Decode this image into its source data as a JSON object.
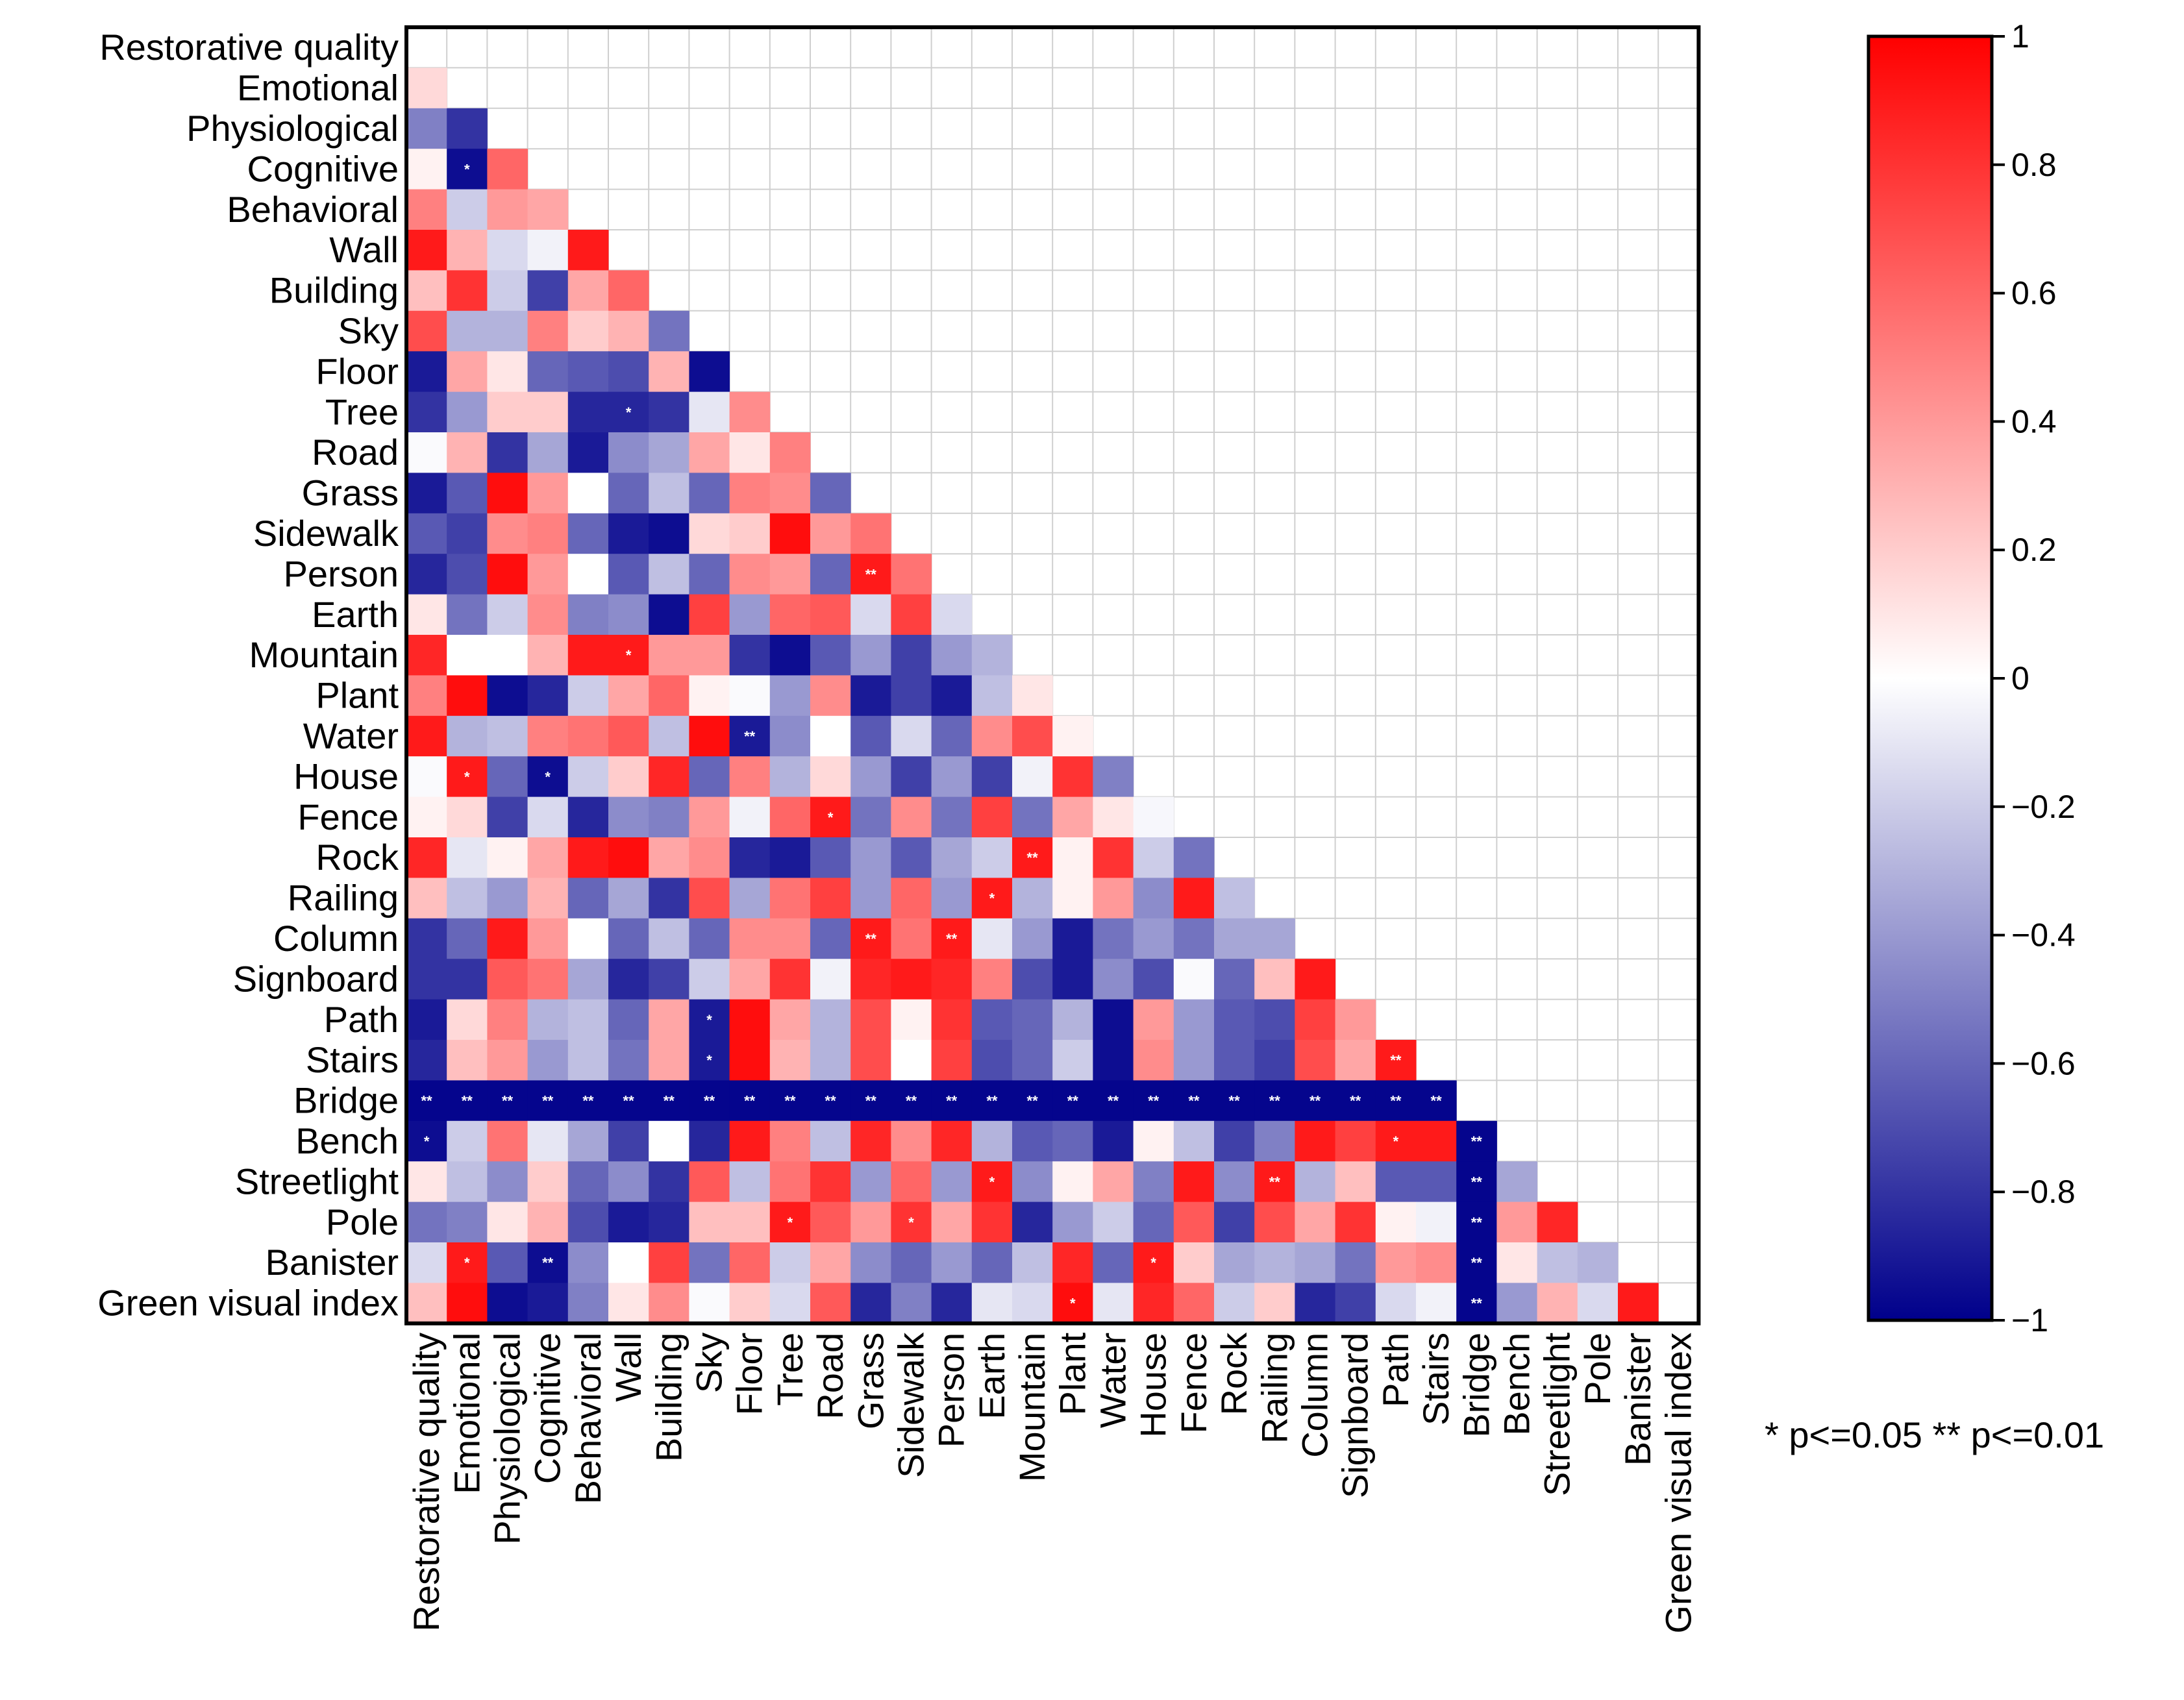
{
  "chart_data": {
    "type": "heatmap",
    "title": "",
    "variables": [
      "Restorative quality",
      "Emotional",
      "Physiological",
      "Cognitive",
      "Behavioral",
      "Wall",
      "Building",
      "Sky",
      "Floor",
      "Tree",
      "Road",
      "Grass",
      "Sidewalk",
      "Person",
      "Earth",
      "Mountain",
      "Plant",
      "Water",
      "House",
      "Fence",
      "Rock",
      "Railing",
      "Column",
      "Signboard",
      "Path",
      "Stairs",
      "Bridge",
      "Bench",
      "Streetlight",
      "Pole",
      "Banister",
      "Green visual index"
    ],
    "matrix": [
      [],
      [
        0.15
      ],
      [
        -0.5,
        -0.8
      ],
      [
        0.05,
        -0.95,
        0.6
      ],
      [
        0.5,
        -0.2,
        0.4,
        0.35
      ],
      [
        0.9,
        0.3,
        -0.15,
        -0.05,
        0.9
      ],
      [
        0.25,
        0.8,
        -0.2,
        -0.75,
        0.35,
        0.6
      ],
      [
        0.7,
        -0.3,
        -0.3,
        0.5,
        0.2,
        0.3,
        -0.55
      ],
      [
        -0.9,
        0.35,
        0.1,
        -0.6,
        -0.65,
        -0.7,
        0.3,
        -0.95
      ],
      [
        -0.8,
        -0.4,
        0.2,
        0.2,
        -0.85,
        -0.85,
        -0.8,
        -0.1,
        0.45
      ],
      [
        -0.02,
        0.3,
        -0.8,
        -0.35,
        -0.9,
        -0.45,
        -0.35,
        0.35,
        0.1,
        0.5
      ],
      [
        -0.9,
        -0.65,
        0.95,
        0.4,
        0.0,
        -0.6,
        -0.25,
        -0.6,
        0.5,
        0.45,
        -0.6
      ],
      [
        -0.65,
        -0.75,
        0.45,
        0.5,
        -0.6,
        -0.9,
        -0.95,
        0.15,
        0.2,
        0.95,
        0.4,
        0.55
      ],
      [
        -0.85,
        -0.7,
        0.95,
        0.4,
        0.0,
        -0.65,
        -0.25,
        -0.6,
        0.45,
        0.4,
        -0.6,
        0.9,
        0.55
      ],
      [
        0.1,
        -0.55,
        -0.2,
        0.45,
        -0.5,
        -0.45,
        -0.95,
        0.75,
        -0.4,
        0.6,
        0.65,
        -0.15,
        0.75,
        -0.15
      ],
      [
        0.85,
        0.0,
        0.0,
        0.3,
        0.9,
        0.9,
        0.4,
        0.4,
        -0.8,
        -0.95,
        -0.65,
        -0.4,
        -0.75,
        -0.4,
        -0.3
      ],
      [
        0.5,
        0.95,
        -0.95,
        -0.85,
        -0.2,
        0.35,
        0.6,
        0.05,
        -0.02,
        -0.4,
        0.45,
        -0.9,
        -0.75,
        -0.9,
        -0.25,
        0.1
      ],
      [
        0.9,
        -0.3,
        -0.25,
        0.5,
        0.55,
        0.65,
        -0.25,
        0.95,
        -0.9,
        -0.45,
        0.0,
        -0.65,
        -0.15,
        -0.6,
        0.45,
        0.7,
        0.05
      ],
      [
        -0.02,
        0.9,
        -0.6,
        -0.95,
        -0.2,
        0.2,
        0.85,
        -0.6,
        0.5,
        -0.3,
        0.15,
        -0.4,
        -0.75,
        -0.4,
        -0.75,
        -0.05,
        0.8,
        -0.5
      ],
      [
        0.05,
        0.15,
        -0.75,
        -0.15,
        -0.85,
        -0.45,
        -0.5,
        0.4,
        -0.05,
        0.6,
        0.9,
        -0.55,
        0.45,
        -0.55,
        0.75,
        -0.55,
        0.35,
        0.1,
        -0.03
      ],
      [
        0.85,
        -0.1,
        0.05,
        0.35,
        0.9,
        0.95,
        0.35,
        0.45,
        -0.85,
        -0.9,
        -0.65,
        -0.4,
        -0.65,
        -0.35,
        -0.2,
        0.9,
        0.05,
        0.8,
        -0.2,
        -0.55
      ],
      [
        0.25,
        -0.25,
        -0.4,
        0.3,
        -0.6,
        -0.35,
        -0.8,
        0.7,
        -0.35,
        0.55,
        0.75,
        -0.4,
        0.6,
        -0.4,
        0.9,
        -0.3,
        0.05,
        0.4,
        -0.45,
        0.9,
        -0.25
      ],
      [
        -0.8,
        -0.6,
        0.9,
        0.4,
        0.0,
        -0.6,
        -0.25,
        -0.6,
        0.45,
        0.45,
        -0.6,
        0.9,
        0.55,
        0.9,
        -0.1,
        -0.4,
        -0.9,
        -0.55,
        -0.4,
        -0.55,
        -0.35,
        -0.35
      ],
      [
        -0.8,
        -0.8,
        0.65,
        0.55,
        -0.35,
        -0.85,
        -0.75,
        -0.2,
        0.35,
        0.8,
        -0.05,
        0.85,
        0.9,
        0.85,
        0.5,
        -0.7,
        -0.9,
        -0.45,
        -0.7,
        -0.02,
        -0.6,
        0.25,
        0.9
      ],
      [
        -0.9,
        0.15,
        0.5,
        -0.3,
        -0.25,
        -0.6,
        0.35,
        -0.9,
        0.95,
        0.35,
        -0.3,
        0.7,
        0.05,
        0.8,
        -0.65,
        -0.6,
        -0.3,
        -0.95,
        0.4,
        -0.4,
        -0.65,
        -0.7,
        0.75,
        0.4
      ],
      [
        -0.85,
        0.25,
        0.4,
        -0.4,
        -0.25,
        -0.55,
        0.35,
        -0.9,
        0.95,
        0.3,
        -0.3,
        0.7,
        0.0,
        0.75,
        -0.7,
        -0.6,
        -0.2,
        -0.95,
        0.45,
        -0.4,
        -0.65,
        -0.75,
        0.7,
        0.35,
        0.9
      ],
      [
        -0.98,
        -0.98,
        -0.98,
        -0.98,
        -0.98,
        -0.98,
        -0.98,
        -0.98,
        -0.98,
        -0.98,
        -0.98,
        -0.98,
        -0.98,
        -0.98,
        -0.98,
        -0.98,
        -0.98,
        -0.98,
        -0.98,
        -0.98,
        -0.98,
        -0.98,
        -0.98,
        -0.98,
        -0.98,
        -0.98
      ],
      [
        -0.95,
        -0.2,
        0.55,
        -0.1,
        -0.35,
        -0.75,
        0.0,
        -0.85,
        0.9,
        0.5,
        -0.25,
        0.85,
        0.45,
        0.85,
        -0.3,
        -0.65,
        -0.6,
        -0.9,
        0.05,
        -0.25,
        -0.75,
        -0.5,
        0.9,
        0.75,
        0.9,
        0.9,
        -0.98
      ],
      [
        0.1,
        -0.25,
        -0.45,
        0.2,
        -0.6,
        -0.45,
        -0.8,
        0.65,
        -0.25,
        0.55,
        0.8,
        -0.4,
        0.6,
        -0.4,
        0.9,
        -0.45,
        0.05,
        0.35,
        -0.5,
        0.9,
        -0.45,
        0.9,
        -0.3,
        0.25,
        -0.65,
        -0.65,
        -0.98,
        -0.35
      ],
      [
        -0.55,
        -0.5,
        0.1,
        0.3,
        -0.7,
        -0.9,
        -0.85,
        0.25,
        0.25,
        0.9,
        0.65,
        0.4,
        0.8,
        0.35,
        0.8,
        -0.85,
        -0.4,
        -0.2,
        -0.6,
        0.65,
        -0.75,
        0.7,
        0.35,
        0.8,
        0.05,
        -0.05,
        -0.98,
        0.4,
        0.85
      ],
      [
        -0.15,
        0.9,
        -0.65,
        -0.95,
        -0.45,
        0.0,
        0.75,
        -0.55,
        0.6,
        -0.2,
        0.35,
        -0.45,
        -0.6,
        -0.4,
        -0.6,
        -0.25,
        0.85,
        -0.6,
        0.9,
        0.2,
        -0.35,
        -0.3,
        -0.35,
        -0.55,
        0.4,
        0.45,
        -0.98,
        0.1,
        -0.25,
        -0.3
      ],
      [
        0.25,
        0.95,
        -0.95,
        -0.9,
        -0.5,
        0.1,
        0.45,
        -0.02,
        0.2,
        -0.15,
        0.65,
        -0.85,
        -0.5,
        -0.85,
        -0.1,
        -0.15,
        0.95,
        -0.1,
        0.85,
        0.6,
        -0.2,
        0.2,
        -0.85,
        -0.75,
        -0.15,
        -0.05,
        -0.98,
        -0.4,
        0.3,
        -0.15,
        0.9
      ]
    ],
    "significance": [
      {
        "row": 3,
        "col": 1,
        "mark": "*"
      },
      {
        "row": 9,
        "col": 5,
        "mark": "*"
      },
      {
        "row": 13,
        "col": 11,
        "mark": "**"
      },
      {
        "row": 15,
        "col": 5,
        "mark": "*"
      },
      {
        "row": 17,
        "col": 8,
        "mark": "**"
      },
      {
        "row": 18,
        "col": 1,
        "mark": "*"
      },
      {
        "row": 18,
        "col": 3,
        "mark": "*"
      },
      {
        "row": 19,
        "col": 10,
        "mark": "*"
      },
      {
        "row": 20,
        "col": 15,
        "mark": "**"
      },
      {
        "row": 21,
        "col": 14,
        "mark": "*"
      },
      {
        "row": 22,
        "col": 11,
        "mark": "**"
      },
      {
        "row": 22,
        "col": 13,
        "mark": "**"
      },
      {
        "row": 24,
        "col": 7,
        "mark": "*"
      },
      {
        "row": 25,
        "col": 7,
        "mark": "*"
      },
      {
        "row": 25,
        "col": 24,
        "mark": "**"
      },
      {
        "row": 26,
        "col": 0,
        "mark": "**"
      },
      {
        "row": 26,
        "col": 1,
        "mark": "**"
      },
      {
        "row": 26,
        "col": 2,
        "mark": "**"
      },
      {
        "row": 26,
        "col": 3,
        "mark": "**"
      },
      {
        "row": 26,
        "col": 4,
        "mark": "**"
      },
      {
        "row": 26,
        "col": 5,
        "mark": "**"
      },
      {
        "row": 26,
        "col": 6,
        "mark": "**"
      },
      {
        "row": 26,
        "col": 7,
        "mark": "**"
      },
      {
        "row": 26,
        "col": 8,
        "mark": "**"
      },
      {
        "row": 26,
        "col": 9,
        "mark": "**"
      },
      {
        "row": 26,
        "col": 10,
        "mark": "**"
      },
      {
        "row": 26,
        "col": 11,
        "mark": "**"
      },
      {
        "row": 26,
        "col": 12,
        "mark": "**"
      },
      {
        "row": 26,
        "col": 13,
        "mark": "**"
      },
      {
        "row": 26,
        "col": 14,
        "mark": "**"
      },
      {
        "row": 26,
        "col": 15,
        "mark": "**"
      },
      {
        "row": 26,
        "col": 16,
        "mark": "**"
      },
      {
        "row": 26,
        "col": 17,
        "mark": "**"
      },
      {
        "row": 26,
        "col": 18,
        "mark": "**"
      },
      {
        "row": 26,
        "col": 19,
        "mark": "**"
      },
      {
        "row": 26,
        "col": 20,
        "mark": "**"
      },
      {
        "row": 26,
        "col": 21,
        "mark": "**"
      },
      {
        "row": 26,
        "col": 22,
        "mark": "**"
      },
      {
        "row": 26,
        "col": 23,
        "mark": "**"
      },
      {
        "row": 26,
        "col": 24,
        "mark": "**"
      },
      {
        "row": 26,
        "col": 25,
        "mark": "**"
      },
      {
        "row": 27,
        "col": 0,
        "mark": "*"
      },
      {
        "row": 27,
        "col": 24,
        "mark": "*"
      },
      {
        "row": 27,
        "col": 26,
        "mark": "**"
      },
      {
        "row": 28,
        "col": 14,
        "mark": "*"
      },
      {
        "row": 28,
        "col": 21,
        "mark": "**"
      },
      {
        "row": 28,
        "col": 26,
        "mark": "**"
      },
      {
        "row": 29,
        "col": 9,
        "mark": "*"
      },
      {
        "row": 29,
        "col": 12,
        "mark": "*"
      },
      {
        "row": 29,
        "col": 26,
        "mark": "**"
      },
      {
        "row": 30,
        "col": 1,
        "mark": "*"
      },
      {
        "row": 30,
        "col": 3,
        "mark": "**"
      },
      {
        "row": 30,
        "col": 18,
        "mark": "*"
      },
      {
        "row": 30,
        "col": 26,
        "mark": "**"
      },
      {
        "row": 31,
        "col": 16,
        "mark": "*"
      },
      {
        "row": 31,
        "col": 26,
        "mark": "**"
      }
    ],
    "color_scale": {
      "min": -1,
      "max": 1,
      "low_color": "#00008b",
      "mid_color": "#ffffff",
      "high_color": "#ff0000",
      "ticks": [
        "1",
        "0.8",
        "0.6",
        "0.4",
        "0.2",
        "0",
        "−0.2",
        "−0.4",
        "−0.6",
        "−0.8",
        "−1"
      ],
      "tick_values": [
        1,
        0.8,
        0.6,
        0.4,
        0.2,
        0,
        -0.2,
        -0.4,
        -0.6,
        -0.8,
        -1
      ]
    },
    "significance_note": "* p<=0.05   ** p<=0.01",
    "grid": true,
    "legend": "right"
  }
}
